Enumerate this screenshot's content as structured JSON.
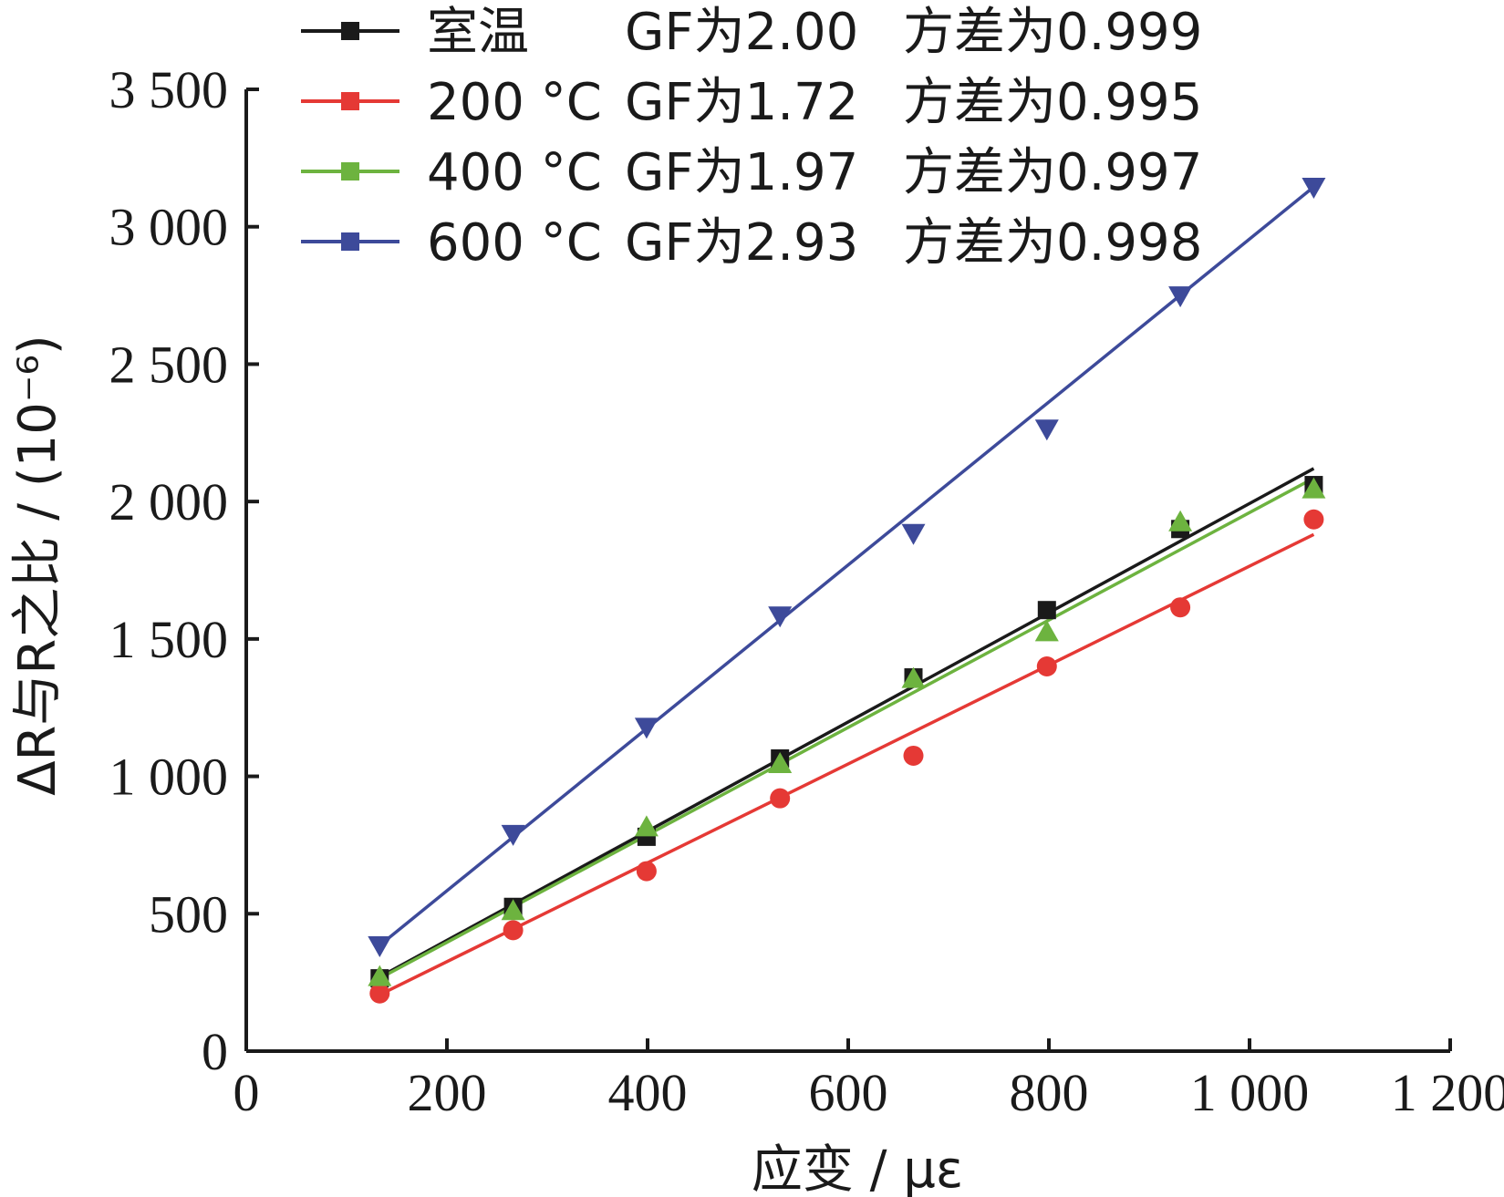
{
  "chart_data": {
    "type": "scatter",
    "xlabel": "应变 / με",
    "ylabel": "ΔR与R之比 / (10⁻⁶)",
    "xlim": [
      0,
      1200
    ],
    "ylim": [
      0,
      3500
    ],
    "x_ticks": [
      0,
      200,
      400,
      600,
      800,
      1000,
      1200
    ],
    "x_tick_labels": [
      "0",
      "200",
      "400",
      "600",
      "800",
      "1 000",
      "1 200"
    ],
    "y_ticks": [
      0,
      500,
      1000,
      1500,
      2000,
      2500,
      3000,
      3500
    ],
    "y_tick_labels": [
      "0",
      "500",
      "1 000",
      "1 500",
      "2 000",
      "2 500",
      "3 000",
      "3 500"
    ],
    "grid": false,
    "legend_position": "top",
    "x": [
      133,
      266,
      399,
      532,
      665,
      798,
      931,
      1064
    ],
    "series": [
      {
        "name": "室温",
        "legend_label": "室温",
        "gf_text": "GF为2.00",
        "var_text": "方差为0.999",
        "color": "#1a1a1a",
        "marker": "square",
        "values": [
          265,
          525,
          780,
          1065,
          1360,
          1605,
          1900,
          2060
        ],
        "fit_start": [
          133,
          270
        ],
        "fit_end": [
          1064,
          2120
        ]
      },
      {
        "name": "200 °C",
        "legend_label": "200 °C",
        "gf_text": "GF为1.72",
        "var_text": "方差为0.995",
        "color": "#e53935",
        "marker": "circle",
        "values": [
          210,
          440,
          655,
          920,
          1075,
          1400,
          1615,
          1935
        ],
        "fit_start": [
          133,
          205
        ],
        "fit_end": [
          1064,
          1880
        ]
      },
      {
        "name": "400 °C",
        "legend_label": "400 °C",
        "gf_text": "GF为1.97",
        "var_text": "方差为0.997",
        "color": "#6db33f",
        "marker": "triangle-up",
        "values": [
          270,
          510,
          815,
          1045,
          1355,
          1525,
          1925,
          2045
        ],
        "fit_start": [
          133,
          265
        ],
        "fit_end": [
          1064,
          2085
        ]
      },
      {
        "name": "600 °C",
        "legend_label": "600 °C",
        "gf_text": "GF为2.93",
        "var_text": "方差为0.998",
        "color": "#3d4a9a",
        "marker": "triangle-down",
        "values": [
          385,
          790,
          1180,
          1585,
          1885,
          2265,
          2750,
          3145
        ],
        "fit_start": [
          133,
          385
        ],
        "fit_end": [
          1064,
          3145
        ]
      }
    ]
  }
}
